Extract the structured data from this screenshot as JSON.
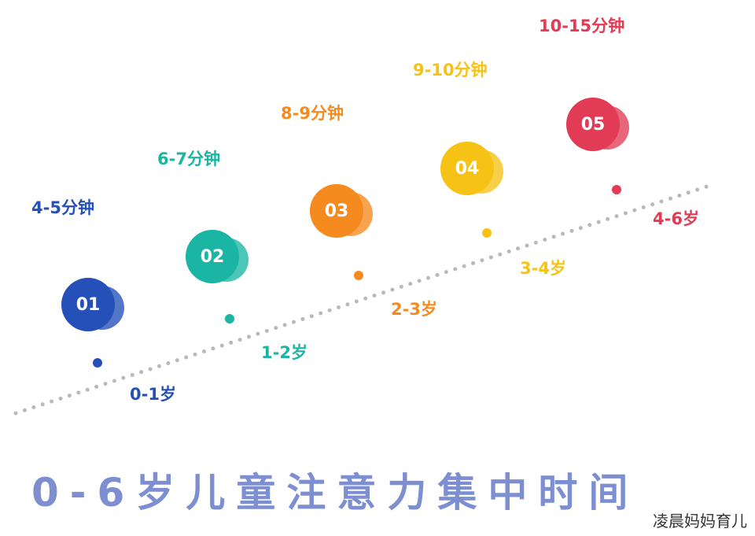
{
  "stages": [
    {
      "number": "01",
      "age": "0-1岁",
      "duration": "4-5分钟",
      "color": "#2450b8"
    },
    {
      "number": "02",
      "age": "1-2岁",
      "duration": "6-7分钟",
      "color": "#1bb5a3"
    },
    {
      "number": "03",
      "age": "2-3岁",
      "duration": "8-9分钟",
      "color": "#f58a1f"
    },
    {
      "number": "04",
      "age": "3-4岁",
      "duration": "9-10分钟",
      "color": "#f6c215"
    },
    {
      "number": "05",
      "age": "4-6岁",
      "duration": "10-15分钟",
      "color": "#e13b55"
    }
  ],
  "title": "0-6岁儿童注意力集中时间",
  "watermark": "凌晨妈妈育儿",
  "trend_color": "#b9b9b9"
}
